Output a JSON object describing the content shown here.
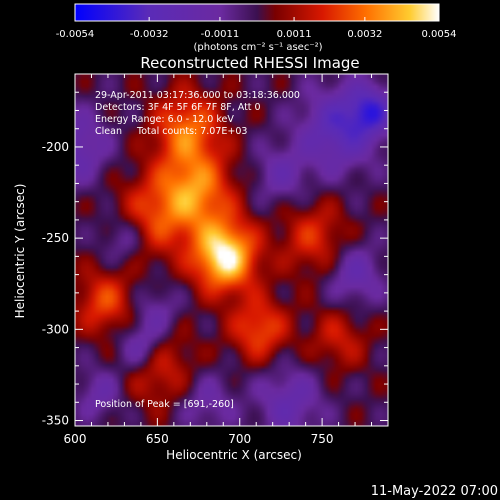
{
  "chart_data": {
    "type": "heatmap",
    "title": "Reconstructed RHESSI Image",
    "xlabel": "Heliocentric X (arcsec)",
    "ylabel": "Heliocentric Y (arcsec)",
    "xlim": [
      600,
      790
    ],
    "ylim": [
      -353,
      -160
    ],
    "x_ticks": [
      "600",
      "650",
      "700",
      "750"
    ],
    "y_ticks": [
      "-200",
      "-250",
      "-300",
      "-350"
    ],
    "colorbar": {
      "ticks": [
        "-0.0054",
        "-0.0032",
        "-0.0011",
        "0.0011",
        "0.0032",
        "0.0054"
      ],
      "unit_label": "(photons cm⁻² s⁻¹ asec⁻²)",
      "range": [
        -0.0054,
        0.0054
      ]
    },
    "annotations": [
      "29-Apr-2011 03:17:36.000 to 03:18:36.000",
      "Detectors: 3F 4F 5F 6F 7F 8F, Att 0",
      "Energy Range: 6.0 - 12.0 keV",
      "Clean     Total counts: 7.07E+03"
    ],
    "peak_text": "Position of Peak = [691,-260]",
    "peak_position": [
      691,
      -260
    ],
    "sources": [
      {
        "x": 691,
        "y": -260,
        "amp": 0.0054,
        "sigma": 13
      },
      {
        "x": 672,
        "y": -225,
        "amp": 0.0036,
        "sigma": 16
      },
      {
        "x": 668,
        "y": -190,
        "amp": 0.003,
        "sigma": 14
      },
      {
        "x": 712,
        "y": -300,
        "amp": 0.0026,
        "sigma": 12
      },
      {
        "x": 645,
        "y": -240,
        "amp": 0.002,
        "sigma": 16
      },
      {
        "x": 618,
        "y": -285,
        "amp": 0.0024,
        "sigma": 12
      },
      {
        "x": 650,
        "y": -320,
        "amp": 0.002,
        "sigma": 15
      },
      {
        "x": 745,
        "y": -250,
        "amp": 0.002,
        "sigma": 14
      },
      {
        "x": 760,
        "y": -305,
        "amp": 0.0016,
        "sigma": 12
      },
      {
        "x": 600,
        "y": -200,
        "amp": -0.0022,
        "sigma": 14
      },
      {
        "x": 630,
        "y": -250,
        "amp": -0.0018,
        "sigma": 10
      },
      {
        "x": 640,
        "y": -310,
        "amp": -0.0024,
        "sigma": 10
      },
      {
        "x": 760,
        "y": -190,
        "amp": -0.003,
        "sigma": 16
      },
      {
        "x": 780,
        "y": -180,
        "amp": -0.003,
        "sigma": 10
      },
      {
        "x": 725,
        "y": -215,
        "amp": -0.0016,
        "sigma": 12
      },
      {
        "x": 650,
        "y": -290,
        "amp": -0.0014,
        "sigma": 10
      },
      {
        "x": 770,
        "y": -270,
        "amp": -0.002,
        "sigma": 12
      },
      {
        "x": 730,
        "y": -340,
        "amp": -0.002,
        "sigma": 14
      },
      {
        "x": 680,
        "y": -340,
        "amp": -0.0014,
        "sigma": 12
      },
      {
        "x": 615,
        "y": -335,
        "amp": -0.0016,
        "sigma": 10
      }
    ],
    "colormap": [
      {
        "v": -0.0054,
        "color": "#0000ff"
      },
      {
        "v": -0.0032,
        "color": "#5a2bb8"
      },
      {
        "v": -0.0011,
        "color": "#6b2aa0"
      },
      {
        "v": 0.0,
        "color": "#3b1050"
      },
      {
        "v": 0.0005,
        "color": "#7a0000"
      },
      {
        "v": 0.0018,
        "color": "#d81800"
      },
      {
        "v": 0.0032,
        "color": "#ff7000"
      },
      {
        "v": 0.0045,
        "color": "#ffcc30"
      },
      {
        "v": 0.0054,
        "color": "#ffffff"
      }
    ]
  },
  "footer": {
    "timestamp": "11-May-2022 07:00"
  }
}
